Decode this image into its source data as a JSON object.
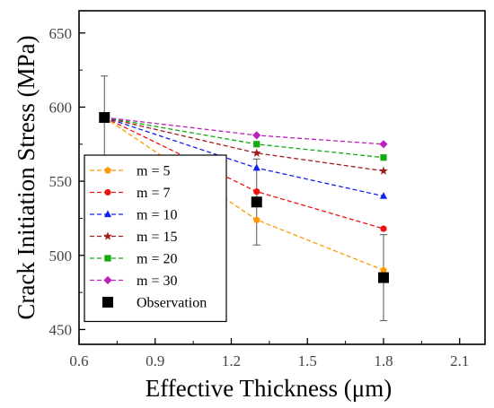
{
  "chart_data": {
    "type": "line",
    "xlabel": "Effective Thickness (μm)",
    "ylabel": "Crack Initiation Stress (MPa)",
    "xlim": [
      0.6,
      2.2
    ],
    "ylim": [
      440,
      665
    ],
    "xticks": [
      0.6,
      0.9,
      1.2,
      1.5,
      1.8,
      2.1
    ],
    "xtick_labels": [
      "0.6",
      "0.9",
      "1.2",
      "1.5",
      "1.8",
      "2.1"
    ],
    "yticks": [
      450,
      500,
      550,
      600,
      650
    ],
    "ytick_labels": [
      "450",
      "500",
      "550",
      "600",
      "650"
    ],
    "legend_position": "bottom-left",
    "series": [
      {
        "name": "m = 5",
        "color": "#ff9900",
        "marker": "pentagon",
        "style": "dashed",
        "x": [
          0.7,
          1.3,
          1.8
        ],
        "y": [
          593,
          524,
          490
        ]
      },
      {
        "name": "m = 7",
        "color": "#ee1111",
        "marker": "circle",
        "style": "dashed",
        "x": [
          0.7,
          1.3,
          1.8
        ],
        "y": [
          593,
          543,
          518
        ]
      },
      {
        "name": "m = 10",
        "color": "#1122ee",
        "marker": "triangle",
        "style": "dashed",
        "x": [
          0.7,
          1.3,
          1.8
        ],
        "y": [
          593,
          559,
          540
        ]
      },
      {
        "name": "m = 15",
        "color": "#a01c1c",
        "marker": "star",
        "style": "dashed",
        "x": [
          0.7,
          1.3,
          1.8
        ],
        "y": [
          593,
          569,
          557
        ]
      },
      {
        "name": "m = 20",
        "color": "#11aa11",
        "marker": "square",
        "style": "dashed",
        "x": [
          0.7,
          1.3,
          1.8
        ],
        "y": [
          593,
          575,
          566
        ]
      },
      {
        "name": "m = 30",
        "color": "#bb22bb",
        "marker": "diamond",
        "style": "dashed",
        "x": [
          0.7,
          1.3,
          1.8
        ],
        "y": [
          593,
          581,
          575
        ]
      },
      {
        "name": "Observation",
        "color": "#000000",
        "marker": "square",
        "style": "none",
        "x": [
          0.7,
          1.3,
          1.8
        ],
        "y": [
          593,
          536,
          485
        ],
        "error": [
          28,
          29,
          29
        ]
      }
    ]
  }
}
